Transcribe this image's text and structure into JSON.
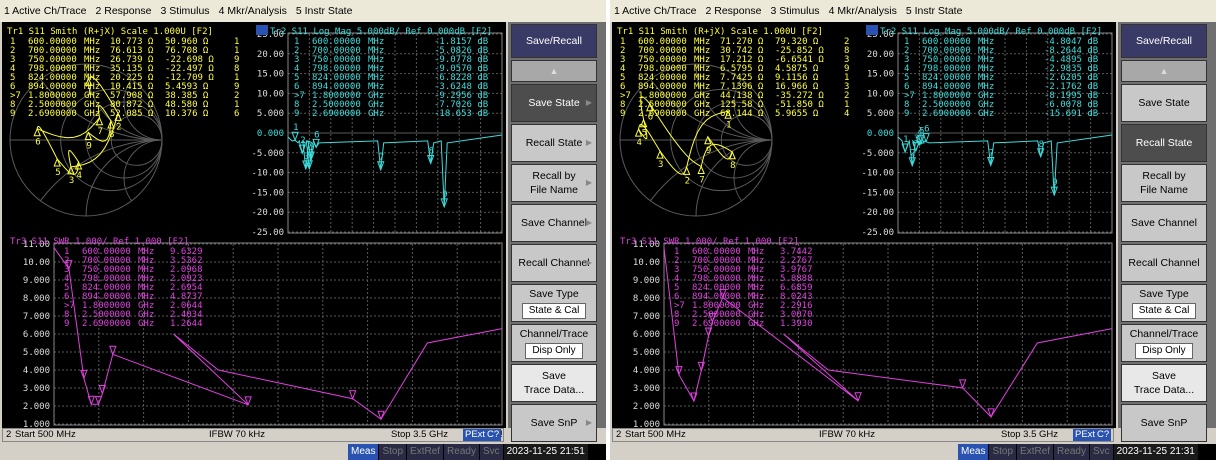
{
  "menu": [
    "1 Active Ch/Trace",
    "2 Response",
    "3 Stimulus",
    "4 Mkr/Analysis",
    "5 Instr State"
  ],
  "left_screen": {
    "tr1": {
      "header": "Tr1 S11 Smith (R+jX) Scale 1.000U [F2]",
      "markers": [
        {
          "n": "1",
          "f": "600.00000",
          "u": "MHz",
          "a": "10.773 Ω",
          "b": "50.960 Ω",
          "c": "1"
        },
        {
          "n": "2",
          "f": "700.00000",
          "u": "MHz",
          "a": "76.613 Ω",
          "b": "76.708 Ω",
          "c": "1"
        },
        {
          "n": "3",
          "f": "750.00000",
          "u": "MHz",
          "a": "26.739 Ω",
          "b": "-22.698 Ω",
          "c": "9"
        },
        {
          "n": "4",
          "f": "798.00000",
          "u": "MHz",
          "a": "35.135 Ω",
          "b": "-22.497 Ω",
          "c": "8"
        },
        {
          "n": "5",
          "f": "824.00000",
          "u": "MHz",
          "a": "20.225 Ω",
          "b": "-12.709 Ω",
          "c": "1"
        },
        {
          "n": "6",
          "f": "894.00000",
          "u": "MHz",
          "a": "10.415 Ω",
          "b": "5.4593 Ω",
          "c": "9"
        },
        {
          "n": ">7",
          "f": "1.8000000",
          "u": "GHz",
          "a": "57.908 Ω",
          "b": "38.385 Ω",
          "c": "2"
        },
        {
          "n": "8",
          "f": "2.5000000",
          "u": "GHz",
          "a": "80.872 Ω",
          "b": "48.580 Ω",
          "c": "1"
        },
        {
          "n": "9",
          "f": "2.6900000",
          "u": "GHz",
          "a": "52.085 Ω",
          "b": "10.376 Ω",
          "c": "6"
        }
      ]
    },
    "tr2": {
      "header": "Tr2 S11 Log Mag 5.000dB/ Ref 0.000dB [F2]",
      "yticks": [
        "25.00",
        "20.00",
        "15.00",
        "10.00",
        "5.000",
        "0.000",
        "-5.000",
        "-10.00",
        "-15.00",
        "-20.00",
        "-25.00"
      ],
      "markers": [
        {
          "n": "1",
          "f": "600.00000",
          "u": "MHz",
          "v": "-1.8157 dB"
        },
        {
          "n": "2",
          "f": "700.00000",
          "u": "MHz",
          "v": "-5.0826 dB"
        },
        {
          "n": "3",
          "f": "750.00000",
          "u": "MHz",
          "v": "-9.0778 dB"
        },
        {
          "n": "4",
          "f": "798.00000",
          "u": "MHz",
          "v": "-9.0570 dB"
        },
        {
          "n": "5",
          "f": "824.00000",
          "u": "MHz",
          "v": "-6.8228 dB"
        },
        {
          "n": "6",
          "f": "894.00000",
          "u": "MHz",
          "v": "-3.6248 dB"
        },
        {
          "n": ">7",
          "f": "1.8000000",
          "u": "GHz",
          "v": "-9.2956 dB"
        },
        {
          "n": "8",
          "f": "2.5000000",
          "u": "GHz",
          "v": "-7.7026 dB"
        },
        {
          "n": "9",
          "f": "2.6900000",
          "u": "GHz",
          "v": "-18.653 dB"
        }
      ]
    },
    "tr3": {
      "header": "Tr3 S11 SWR 1.000/ Ref 1.000 [F2]",
      "yticks": [
        "11.00",
        "10.00",
        "9.000",
        "8.000",
        "7.000",
        "6.000",
        "5.000",
        "4.000",
        "3.000",
        "2.000",
        "1.000"
      ],
      "markers": [
        {
          "n": "1",
          "f": "600.00000",
          "u": "MHz",
          "v": "9.6329"
        },
        {
          "n": "2",
          "f": "700.00000",
          "u": "MHz",
          "v": "3.5362"
        },
        {
          "n": "3",
          "f": "750.00000",
          "u": "MHz",
          "v": "2.0968"
        },
        {
          "n": "4",
          "f": "798.00000",
          "u": "MHz",
          "v": "2.0923"
        },
        {
          "n": "5",
          "f": "824.00000",
          "u": "MHz",
          "v": "2.6954"
        },
        {
          "n": "6",
          "f": "894.00000",
          "u": "MHz",
          "v": "4.8737"
        },
        {
          "n": ">7",
          "f": "1.8000000",
          "u": "GHz",
          "v": "2.0644"
        },
        {
          "n": "8",
          "f": "2.5000000",
          "u": "GHz",
          "v": "2.4034"
        },
        {
          "n": "9",
          "f": "2.6900000",
          "u": "GHz",
          "v": "1.2644"
        }
      ]
    },
    "status": {
      "ch": "2",
      "start": "Start 500 MHz",
      "ifbw": "IFBW 70 kHz",
      "stop": "Stop 3.5 GHz",
      "pext": "PExt",
      "c": "C?",
      "bang": "!"
    },
    "info": {
      "meas": "Meas",
      "stop": "Stop",
      "extref": "ExtRef",
      "ready": "Ready",
      "svc": "Svc",
      "datetime": "2023-11-25 21:51"
    },
    "softkeys": [
      {
        "label": "Save/Recall",
        "style": "title"
      },
      {
        "label": "▲",
        "style": "nav"
      },
      {
        "label": "Save State",
        "style": "active",
        "arrow": true
      },
      {
        "label": "Recall State",
        "style": "",
        "arrow": true
      },
      {
        "label": "Recall by\nFile Name",
        "style": "",
        "arrow": true
      },
      {
        "label": "Save Channel",
        "style": "",
        "arrow": true
      },
      {
        "label": "Recall Channel",
        "style": "",
        "arrow": true
      },
      {
        "label": "Save Type",
        "sub": "State & Cal",
        "style": ""
      },
      {
        "label": "Channel/Trace",
        "sub": "Disp Only",
        "style": ""
      },
      {
        "label": "Save\nTrace Data...",
        "style": "hl"
      },
      {
        "label": "Save SnP",
        "style": "",
        "arrow": true
      },
      {
        "label": "▼",
        "style": "nav"
      }
    ]
  },
  "right_screen": {
    "tr1": {
      "header": "Tr1 S11 Smith (R+jX) Scale 1.000U [F2]",
      "markers": [
        {
          "n": "1",
          "f": "600.00000",
          "u": "MHz",
          "a": "71.270 Ω",
          "b": "79.320 Ω",
          "c": "2"
        },
        {
          "n": "2",
          "f": "700.00000",
          "u": "MHz",
          "a": "30.742 Ω",
          "b": "-25.852 Ω",
          "c": "8"
        },
        {
          "n": "3",
          "f": "750.00000",
          "u": "MHz",
          "a": "17.212 Ω",
          "b": "-6.6541 Ω",
          "c": "3"
        },
        {
          "n": "4",
          "f": "798.00000",
          "u": "MHz",
          "a": "6.5795 Ω",
          "b": "4.5875 Ω",
          "c": "9"
        },
        {
          "n": "5",
          "f": "824.00000",
          "u": "MHz",
          "a": "7.7425 Ω",
          "b": "9.1156 Ω",
          "c": "1"
        },
        {
          "n": "6",
          "f": "894.00000",
          "u": "MHz",
          "a": "7.1396 Ω",
          "b": "16.966 Ω",
          "c": "3"
        },
        {
          "n": ">7",
          "f": "1.8000000",
          "u": "GHz",
          "a": "44.138 Ω",
          "b": "-35.272 Ω",
          "c": "2"
        },
        {
          "n": "8",
          "f": "2.5000000",
          "u": "GHz",
          "a": "125.58 Ω",
          "b": "-51.850 Ω",
          "c": "1"
        },
        {
          "n": "9",
          "f": "2.6900000",
          "u": "GHz",
          "a": "68.144 Ω",
          "b": "5.9655 Ω",
          "c": "4"
        }
      ]
    },
    "tr2": {
      "header": "Tr2 S11 Log Mag 5.000dB/ Ref 0.000dB [F2]",
      "yticks": [
        "25.00",
        "20.00",
        "15.00",
        "10.00",
        "5.000",
        "0.000",
        "-5.000",
        "-10.00",
        "-15.00",
        "-20.00",
        "-25.00"
      ],
      "markers": [
        {
          "n": "1",
          "f": "600.00000",
          "u": "MHz",
          "v": "-4.8047 dB"
        },
        {
          "n": "2",
          "f": "700.00000",
          "u": "MHz",
          "v": "-8.2644 dB"
        },
        {
          "n": "3",
          "f": "750.00000",
          "u": "MHz",
          "v": "-4.4895 dB"
        },
        {
          "n": "4",
          "f": "798.00000",
          "u": "MHz",
          "v": "-2.9835 dB"
        },
        {
          "n": "5",
          "f": "824.00000",
          "u": "MHz",
          "v": "-2.6205 dB"
        },
        {
          "n": "6",
          "f": "894.00000",
          "u": "MHz",
          "v": "-2.1762 dB"
        },
        {
          "n": ">7",
          "f": "1.8000000",
          "u": "GHz",
          "v": "-8.1995 dB"
        },
        {
          "n": "8",
          "f": "2.5000000",
          "u": "GHz",
          "v": "-6.0078 dB"
        },
        {
          "n": "9",
          "f": "2.6900000",
          "u": "GHz",
          "v": "-15.691 dB"
        }
      ]
    },
    "tr3": {
      "header": "Tr3 S11 SWR 1.000/ Ref 1.000 [F2]",
      "yticks": [
        "11.00",
        "10.00",
        "9.000",
        "8.000",
        "7.000",
        "6.000",
        "5.000",
        "4.000",
        "3.000",
        "2.000",
        "1.000"
      ],
      "markers": [
        {
          "n": "1",
          "f": "600.00000",
          "u": "MHz",
          "v": "3.7442"
        },
        {
          "n": "2",
          "f": "700.00000",
          "u": "MHz",
          "v": "2.2767"
        },
        {
          "n": "3",
          "f": "750.00000",
          "u": "MHz",
          "v": "3.9767"
        },
        {
          "n": "4",
          "f": "798.00000",
          "u": "MHz",
          "v": "5.8888"
        },
        {
          "n": "5",
          "f": "824.00000",
          "u": "MHz",
          "v": "6.6859"
        },
        {
          "n": "6",
          "f": "894.00000",
          "u": "MHz",
          "v": "8.0243"
        },
        {
          "n": ">7",
          "f": "1.8000000",
          "u": "GHz",
          "v": "2.2916"
        },
        {
          "n": "8",
          "f": "2.5000000",
          "u": "GHz",
          "v": "3.0070"
        },
        {
          "n": "9",
          "f": "2.6900000",
          "u": "GHz",
          "v": "1.3930"
        }
      ]
    },
    "status": {
      "ch": "2",
      "start": "Start 500 MHz",
      "ifbw": "IFBW 70 kHz",
      "stop": "Stop 3.5 GHz",
      "pext": "PExt",
      "c": "C?",
      "bang": ""
    },
    "info": {
      "meas": "Meas",
      "stop": "Stop",
      "extref": "ExtRef",
      "ready": "Ready",
      "svc": "Svc",
      "datetime": "2023-11-25 21:31"
    },
    "softkeys": [
      {
        "label": "Save/Recall",
        "style": "title"
      },
      {
        "label": "▲",
        "style": "nav"
      },
      {
        "label": "Save State",
        "style": "",
        "arrow": false
      },
      {
        "label": "Recall State",
        "style": "active",
        "arrow": false
      },
      {
        "label": "Recall by\nFile Name",
        "style": "",
        "arrow": false
      },
      {
        "label": "Save Channel",
        "style": "",
        "arrow": false
      },
      {
        "label": "Recall Channel",
        "style": "",
        "arrow": false
      },
      {
        "label": "Save Type",
        "sub": "State & Cal",
        "style": ""
      },
      {
        "label": "Channel/Trace",
        "sub": "Disp Only",
        "style": ""
      },
      {
        "label": "Save\nTrace Data...",
        "style": "hl"
      },
      {
        "label": "Save SnP",
        "style": "",
        "arrow": false
      },
      {
        "label": "▼",
        "style": "nav"
      }
    ]
  },
  "colors": {
    "tr1": "#ffff3c",
    "tr2": "#3cdcdc",
    "tr3": "#e040e0",
    "grid": "#5a5a5a",
    "screen": "#000000"
  }
}
